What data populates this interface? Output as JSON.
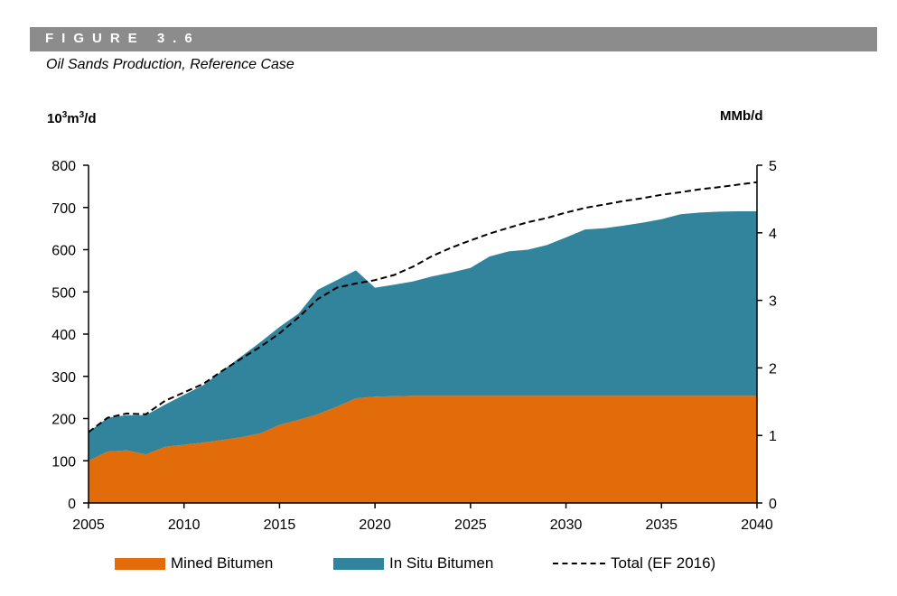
{
  "figure": {
    "label": "FIGURE 3.6",
    "title": "Oil Sands Production, Reference Case"
  },
  "chart_data": {
    "type": "area",
    "title": "Oil Sands Production, Reference Case",
    "ylabel_left": "10³m³/d",
    "ylabel_right": "MMb/d",
    "xlabel": "",
    "x": [
      2005,
      2006,
      2007,
      2008,
      2009,
      2010,
      2011,
      2012,
      2013,
      2014,
      2015,
      2016,
      2017,
      2018,
      2019,
      2020,
      2021,
      2022,
      2023,
      2024,
      2025,
      2026,
      2027,
      2028,
      2029,
      2030,
      2031,
      2032,
      2033,
      2034,
      2035,
      2036,
      2037,
      2038,
      2039,
      2040
    ],
    "xlim": [
      2005,
      2040
    ],
    "x_ticks": [
      2005,
      2010,
      2015,
      2020,
      2025,
      2030,
      2035,
      2040
    ],
    "ylim_left": [
      0,
      800
    ],
    "y_ticks_left": [
      0,
      100,
      200,
      300,
      400,
      500,
      600,
      700,
      800
    ],
    "ylim_right": [
      0,
      5
    ],
    "y_ticks_right": [
      0,
      1,
      2,
      3,
      4,
      5
    ],
    "stacked": true,
    "series": [
      {
        "name": "Mined Bitumen",
        "kind": "area",
        "color": "#e36c0a",
        "values": [
          100,
          122,
          125,
          115,
          133,
          138,
          143,
          149,
          156,
          165,
          185,
          197,
          210,
          228,
          248,
          252,
          253,
          254,
          254,
          254,
          254,
          254,
          254,
          254,
          254,
          254,
          254,
          254,
          254,
          254,
          254,
          254,
          254,
          254,
          254,
          254
        ]
      },
      {
        "name": "In Situ Bitumen",
        "kind": "area",
        "color": "#31849b",
        "values": [
          68,
          80,
          83,
          93,
          100,
          118,
          136,
          164,
          191,
          216,
          232,
          252,
          295,
          300,
          303,
          258,
          264,
          271,
          283,
          292,
          303,
          330,
          342,
          346,
          357,
          375,
          394,
          397,
          403,
          410,
          418,
          430,
          434,
          436,
          437,
          437
        ]
      },
      {
        "name": "Total (EF 2016)",
        "kind": "line",
        "style": "dashed",
        "color": "#000000",
        "values": [
          168,
          202,
          212,
          210,
          242,
          262,
          282,
          313,
          342,
          370,
          402,
          440,
          483,
          510,
          520,
          528,
          540,
          560,
          585,
          605,
          622,
          638,
          652,
          665,
          675,
          688,
          699,
          707,
          715,
          722,
          730,
          736,
          743,
          748,
          754,
          760
        ]
      }
    ],
    "legend_position": "bottom",
    "grid": false
  },
  "colors": {
    "banner": "#8c8c8c",
    "mined": "#e36c0a",
    "insitu": "#31849b"
  }
}
